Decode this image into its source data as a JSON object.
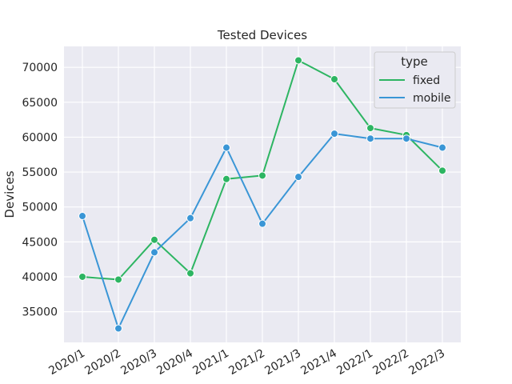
{
  "chart_data": {
    "type": "line",
    "title": "Tested Devices",
    "xlabel": "",
    "ylabel": "Devices",
    "categories": [
      "2020/1",
      "2020/2",
      "2020/3",
      "2020/4",
      "2021/1",
      "2021/2",
      "2021/3",
      "2021/4",
      "2022/1",
      "2022/2",
      "2022/3"
    ],
    "ylim": [
      30600,
      73000
    ],
    "yticks": [
      35000,
      40000,
      45000,
      50000,
      55000,
      60000,
      65000,
      70000
    ],
    "ytick_labels": [
      "35000",
      "40000",
      "45000",
      "50000",
      "55000",
      "60000",
      "65000",
      "70000"
    ],
    "grid": true,
    "legend": {
      "title": "type",
      "position": "top-right"
    },
    "series": [
      {
        "name": "fixed",
        "color": "#2db562",
        "values": [
          40000,
          39600,
          45300,
          40500,
          54000,
          54500,
          71000,
          68300,
          61300,
          60300,
          55200
        ]
      },
      {
        "name": "mobile",
        "color": "#3a96d6",
        "values": [
          48700,
          32600,
          43500,
          48400,
          58500,
          47600,
          54300,
          60500,
          59800,
          59800,
          58500
        ]
      }
    ]
  }
}
